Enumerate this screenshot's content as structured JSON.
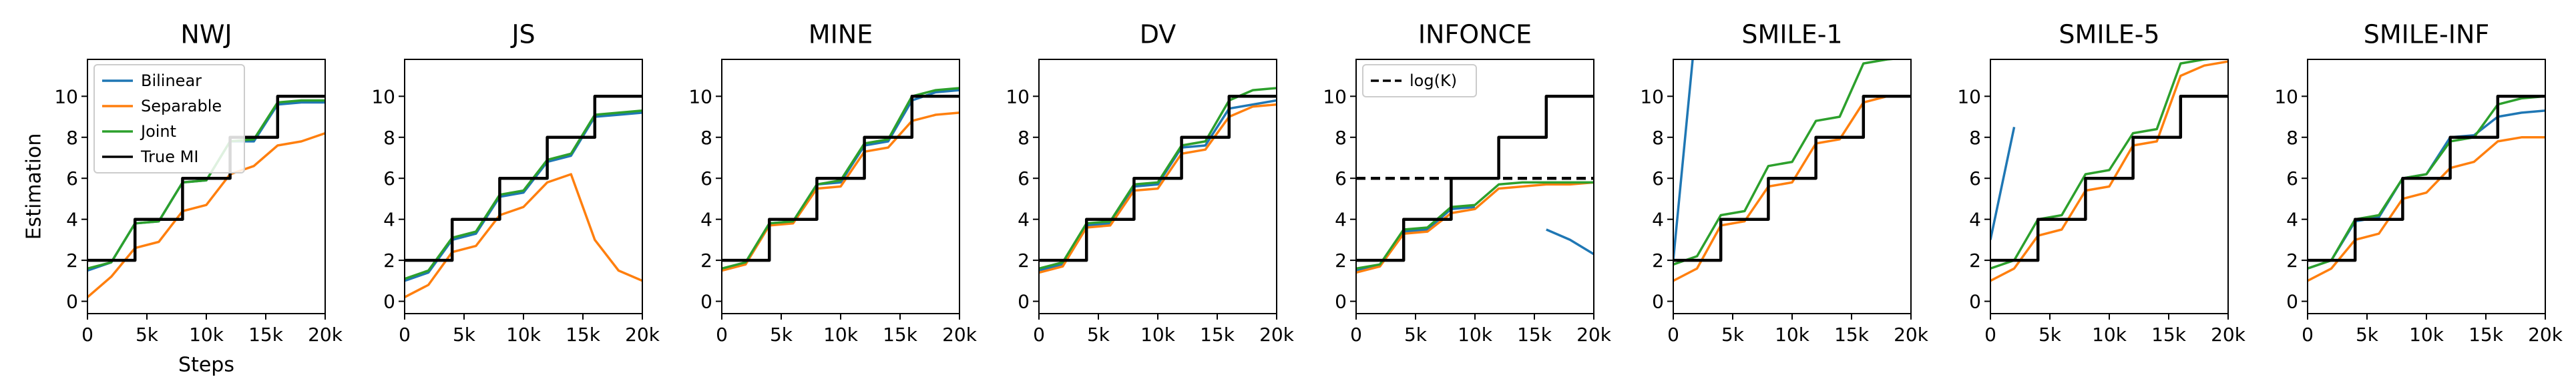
{
  "chart_data": [
    {
      "type": "line",
      "title": "NWJ",
      "ylabel": "Estimation",
      "xlabel": "Steps",
      "legend": "upper left",
      "x": [
        0,
        2000,
        4000,
        6000,
        8000,
        10000,
        12000,
        14000,
        16000,
        18000,
        20000
      ],
      "series": [
        {
          "name": "Bilinear",
          "color": "#1f77b4",
          "values": [
            1.5,
            1.9,
            3.8,
            3.9,
            5.8,
            5.9,
            7.8,
            7.8,
            9.6,
            9.7,
            9.7
          ]
        },
        {
          "name": "Separable",
          "color": "#ff7f0e",
          "values": [
            0.2,
            1.2,
            2.6,
            2.9,
            4.4,
            4.7,
            6.2,
            6.6,
            7.6,
            7.8,
            8.2
          ]
        },
        {
          "name": "Joint",
          "color": "#2ca02c",
          "values": [
            1.6,
            1.9,
            3.8,
            3.9,
            5.8,
            5.9,
            7.8,
            7.9,
            9.7,
            9.8,
            9.8
          ]
        },
        {
          "name": "True MI",
          "color": "#000000",
          "x": [
            0,
            4000,
            4000,
            8000,
            8000,
            12000,
            12000,
            16000,
            16000,
            20000
          ],
          "values": [
            2,
            2,
            4,
            4,
            6,
            6,
            8,
            8,
            10,
            10
          ]
        }
      ],
      "xlim": [
        0,
        20000
      ],
      "xticks": [
        0,
        {
          "value": 5000,
          "label": "5k"
        },
        {
          "value": 10000,
          "label": "10k"
        },
        {
          "value": 15000,
          "label": "15k"
        },
        {
          "value": 20000,
          "label": "20k"
        }
      ],
      "ylim": [
        -0.6,
        11.8
      ],
      "yticks": [
        0,
        2,
        4,
        6,
        8,
        10
      ]
    },
    {
      "type": "line",
      "title": "JS",
      "x": [
        0,
        2000,
        4000,
        6000,
        8000,
        10000,
        12000,
        14000,
        16000,
        18000,
        20000
      ],
      "series": [
        {
          "color": "#1f77b4",
          "values": [
            1.0,
            1.4,
            3.0,
            3.3,
            5.1,
            5.3,
            6.8,
            7.1,
            9.0,
            9.1,
            9.2
          ]
        },
        {
          "color": "#ff7f0e",
          "values": [
            0.2,
            0.8,
            2.4,
            2.7,
            4.2,
            4.6,
            5.8,
            6.2,
            3.0,
            1.5,
            1.0
          ]
        },
        {
          "color": "#2ca02c",
          "values": [
            1.1,
            1.5,
            3.1,
            3.4,
            5.2,
            5.4,
            6.9,
            7.2,
            9.1,
            9.2,
            9.3
          ]
        },
        {
          "color": "#000000",
          "x": [
            0,
            4000,
            4000,
            8000,
            8000,
            12000,
            12000,
            16000,
            16000,
            20000
          ],
          "values": [
            2,
            2,
            4,
            4,
            6,
            6,
            8,
            8,
            10,
            10
          ]
        }
      ],
      "xlim": [
        0,
        20000
      ],
      "xticks": [
        0,
        {
          "value": 5000,
          "label": "5k"
        },
        {
          "value": 10000,
          "label": "10k"
        },
        {
          "value": 15000,
          "label": "15k"
        },
        {
          "value": 20000,
          "label": "20k"
        }
      ],
      "ylim": [
        -0.6,
        11.8
      ],
      "yticks": [
        0,
        2,
        4,
        6,
        8,
        10
      ]
    },
    {
      "type": "line",
      "title": "MINE",
      "x": [
        0,
        2000,
        4000,
        6000,
        8000,
        10000,
        12000,
        14000,
        16000,
        18000,
        20000
      ],
      "series": [
        {
          "color": "#1f77b4",
          "values": [
            1.6,
            1.8,
            3.8,
            3.9,
            5.7,
            5.8,
            7.6,
            7.8,
            9.8,
            10.2,
            10.3
          ]
        },
        {
          "color": "#ff7f0e",
          "values": [
            1.5,
            1.8,
            3.7,
            3.8,
            5.5,
            5.6,
            7.3,
            7.5,
            8.8,
            9.1,
            9.2
          ]
        },
        {
          "color": "#2ca02c",
          "values": [
            1.6,
            1.9,
            3.8,
            3.9,
            5.7,
            5.9,
            7.7,
            7.9,
            10.0,
            10.3,
            10.4
          ]
        },
        {
          "color": "#000000",
          "x": [
            0,
            4000,
            4000,
            8000,
            8000,
            12000,
            12000,
            16000,
            16000,
            20000
          ],
          "values": [
            2,
            2,
            4,
            4,
            6,
            6,
            8,
            8,
            10,
            10
          ]
        }
      ],
      "xlim": [
        0,
        20000
      ],
      "xticks": [
        0,
        {
          "value": 5000,
          "label": "5k"
        },
        {
          "value": 10000,
          "label": "10k"
        },
        {
          "value": 15000,
          "label": "15k"
        },
        {
          "value": 20000,
          "label": "20k"
        }
      ],
      "ylim": [
        -0.6,
        11.8
      ],
      "yticks": [
        0,
        2,
        4,
        6,
        8,
        10
      ]
    },
    {
      "type": "line",
      "title": "DV",
      "x": [
        0,
        2000,
        4000,
        6000,
        8000,
        10000,
        12000,
        14000,
        16000,
        18000,
        20000
      ],
      "series": [
        {
          "color": "#1f77b4",
          "values": [
            1.5,
            1.8,
            3.7,
            3.8,
            5.6,
            5.7,
            7.5,
            7.6,
            9.4,
            9.6,
            9.8
          ]
        },
        {
          "color": "#ff7f0e",
          "values": [
            1.4,
            1.7,
            3.6,
            3.7,
            5.4,
            5.5,
            7.2,
            7.4,
            9.0,
            9.5,
            9.6
          ]
        },
        {
          "color": "#2ca02c",
          "values": [
            1.6,
            1.9,
            3.8,
            3.9,
            5.7,
            5.8,
            7.6,
            7.8,
            9.8,
            10.3,
            10.4
          ]
        },
        {
          "color": "#000000",
          "x": [
            0,
            4000,
            4000,
            8000,
            8000,
            12000,
            12000,
            16000,
            16000,
            20000
          ],
          "values": [
            2,
            2,
            4,
            4,
            6,
            6,
            8,
            8,
            10,
            10
          ]
        }
      ],
      "xlim": [
        0,
        20000
      ],
      "xticks": [
        0,
        {
          "value": 5000,
          "label": "5k"
        },
        {
          "value": 10000,
          "label": "10k"
        },
        {
          "value": 15000,
          "label": "15k"
        },
        {
          "value": 20000,
          "label": "20k"
        }
      ],
      "ylim": [
        -0.6,
        11.8
      ],
      "yticks": [
        0,
        2,
        4,
        6,
        8,
        10
      ]
    },
    {
      "type": "line",
      "title": "INFONCE",
      "legend": "upper left",
      "x": [
        0,
        2000,
        4000,
        6000,
        8000,
        10000,
        12000,
        14000,
        16000,
        18000,
        20000
      ],
      "series": [
        {
          "color": "#1f77b4",
          "values": [
            1.5,
            1.7,
            3.4,
            3.5,
            4.5,
            4.6,
            null,
            null,
            3.5,
            3.0,
            2.3
          ]
        },
        {
          "color": "#ff7f0e",
          "values": [
            1.4,
            1.7,
            3.3,
            3.4,
            4.3,
            4.5,
            5.5,
            5.6,
            5.7,
            5.7,
            5.8
          ]
        },
        {
          "color": "#2ca02c",
          "values": [
            1.6,
            1.8,
            3.5,
            3.6,
            4.6,
            4.7,
            5.7,
            5.8,
            5.8,
            5.8,
            5.8
          ]
        },
        {
          "color": "#000000",
          "x": [
            0,
            4000,
            4000,
            8000,
            8000,
            12000,
            12000,
            16000,
            16000,
            20000
          ],
          "values": [
            2,
            2,
            4,
            4,
            6,
            6,
            8,
            8,
            10,
            10
          ]
        },
        {
          "name": "log(K)",
          "color": "#000000",
          "linestyle": "dashed",
          "x": [
            0,
            20000
          ],
          "values": [
            6,
            6
          ]
        }
      ],
      "xlim": [
        0,
        20000
      ],
      "xticks": [
        0,
        {
          "value": 5000,
          "label": "5k"
        },
        {
          "value": 10000,
          "label": "10k"
        },
        {
          "value": 15000,
          "label": "15k"
        },
        {
          "value": 20000,
          "label": "20k"
        }
      ],
      "ylim": [
        -0.6,
        11.8
      ],
      "yticks": [
        0,
        2,
        4,
        6,
        8,
        10
      ]
    },
    {
      "type": "line",
      "title": "SMILE-1",
      "x": [
        0,
        2000,
        4000,
        6000,
        8000,
        10000,
        12000,
        14000,
        16000,
        18000,
        20000
      ],
      "series": [
        {
          "color": "#1f77b4",
          "values": [
            2.0,
            14.0,
            null,
            null,
            null,
            null,
            null,
            null,
            null,
            null,
            null
          ]
        },
        {
          "color": "#ff7f0e",
          "values": [
            1.0,
            1.6,
            3.7,
            3.9,
            5.6,
            5.8,
            7.7,
            7.9,
            9.7,
            10.0,
            10.0
          ]
        },
        {
          "color": "#2ca02c",
          "values": [
            1.8,
            2.2,
            4.2,
            4.4,
            6.6,
            6.8,
            8.8,
            9.0,
            11.6,
            11.8,
            11.9
          ]
        },
        {
          "color": "#000000",
          "x": [
            0,
            4000,
            4000,
            8000,
            8000,
            12000,
            12000,
            16000,
            16000,
            20000
          ],
          "values": [
            2,
            2,
            4,
            4,
            6,
            6,
            8,
            8,
            10,
            10
          ]
        }
      ],
      "xlim": [
        0,
        20000
      ],
      "xticks": [
        0,
        {
          "value": 5000,
          "label": "5k"
        },
        {
          "value": 10000,
          "label": "10k"
        },
        {
          "value": 15000,
          "label": "15k"
        },
        {
          "value": 20000,
          "label": "20k"
        }
      ],
      "ylim": [
        -0.6,
        11.8
      ],
      "yticks": [
        0,
        2,
        4,
        6,
        8,
        10
      ]
    },
    {
      "type": "line",
      "title": "SMILE-5",
      "x": [
        0,
        2000,
        4000,
        6000,
        8000,
        10000,
        12000,
        14000,
        16000,
        18000,
        20000
      ],
      "series": [
        {
          "color": "#1f77b4",
          "values": [
            3.0,
            8.5,
            null,
            null,
            null,
            null,
            null,
            null,
            null,
            null,
            null
          ]
        },
        {
          "color": "#ff7f0e",
          "values": [
            1.0,
            1.6,
            3.2,
            3.5,
            5.4,
            5.6,
            7.6,
            7.8,
            11.0,
            11.5,
            11.7
          ]
        },
        {
          "color": "#2ca02c",
          "values": [
            1.6,
            2.0,
            4.0,
            4.2,
            6.2,
            6.4,
            8.2,
            8.4,
            11.6,
            11.8,
            11.9
          ]
        },
        {
          "color": "#000000",
          "x": [
            0,
            4000,
            4000,
            8000,
            8000,
            12000,
            12000,
            16000,
            16000,
            20000
          ],
          "values": [
            2,
            2,
            4,
            4,
            6,
            6,
            8,
            8,
            10,
            10
          ]
        }
      ],
      "xlim": [
        0,
        20000
      ],
      "xticks": [
        0,
        {
          "value": 5000,
          "label": "5k"
        },
        {
          "value": 10000,
          "label": "10k"
        },
        {
          "value": 15000,
          "label": "15k"
        },
        {
          "value": 20000,
          "label": "20k"
        }
      ],
      "ylim": [
        -0.6,
        11.8
      ],
      "yticks": [
        0,
        2,
        4,
        6,
        8,
        10
      ]
    },
    {
      "type": "line",
      "title": "SMILE-INF",
      "x": [
        0,
        2000,
        4000,
        6000,
        8000,
        10000,
        12000,
        14000,
        16000,
        18000,
        20000
      ],
      "series": [
        {
          "color": "#1f77b4",
          "values": [
            1.6,
            2.0,
            3.9,
            4.1,
            6.0,
            6.2,
            8.0,
            8.1,
            9.0,
            9.2,
            9.3
          ]
        },
        {
          "color": "#ff7f0e",
          "values": [
            1.0,
            1.6,
            3.0,
            3.3,
            5.0,
            5.3,
            6.5,
            6.8,
            7.8,
            8.0,
            8.0
          ]
        },
        {
          "color": "#2ca02c",
          "values": [
            1.6,
            2.0,
            4.0,
            4.2,
            6.0,
            6.2,
            7.8,
            8.0,
            9.6,
            9.9,
            10.0
          ]
        },
        {
          "color": "#000000",
          "x": [
            0,
            4000,
            4000,
            8000,
            8000,
            12000,
            12000,
            16000,
            16000,
            20000
          ],
          "values": [
            2,
            2,
            4,
            4,
            6,
            6,
            8,
            8,
            10,
            10
          ]
        }
      ],
      "xlim": [
        0,
        20000
      ],
      "xticks": [
        0,
        {
          "value": 5000,
          "label": "5k"
        },
        {
          "value": 10000,
          "label": "10k"
        },
        {
          "value": 15000,
          "label": "15k"
        },
        {
          "value": 20000,
          "label": "20k"
        }
      ],
      "ylim": [
        -0.6,
        11.8
      ],
      "yticks": [
        0,
        2,
        4,
        6,
        8,
        10
      ]
    }
  ]
}
